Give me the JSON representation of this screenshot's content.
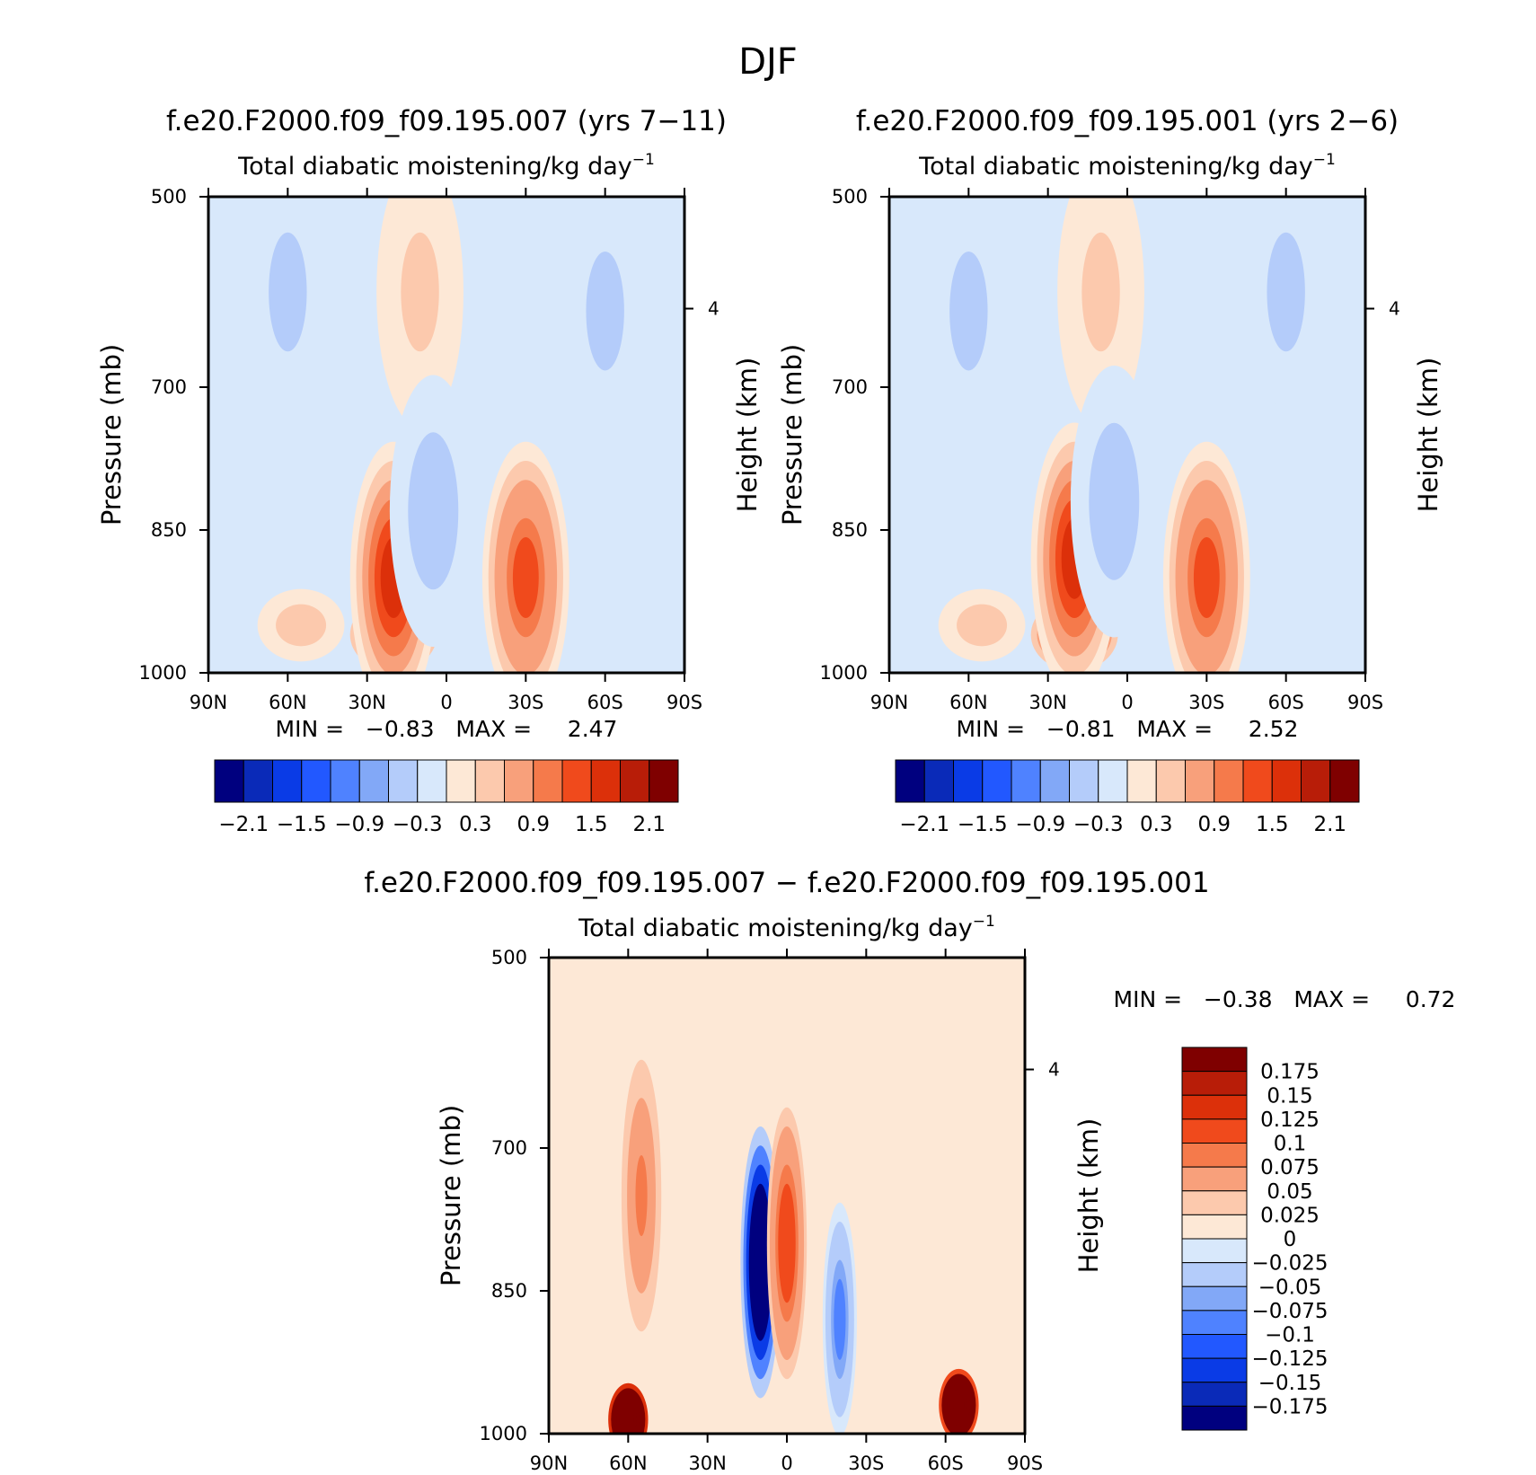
{
  "figure": {
    "title": "DJF"
  },
  "chart_data": [
    {
      "type": "heatmap",
      "id": "panel_007",
      "title": "f.e20.F2000.f09_f09.195.007 (yrs 7−11)",
      "subtitle": "Total diabatic moistening/kg day",
      "subtitle_exp": "−1",
      "ylabel": "Pressure (mb)",
      "ylabel_right": "Height (km)",
      "xticks": [
        "90N",
        "60N",
        "30N",
        "0",
        "30S",
        "60S",
        "90S"
      ],
      "xlim": [
        90,
        -90
      ],
      "yticks": [
        "500",
        "700",
        "850",
        "1000"
      ],
      "ylim": [
        1000,
        500
      ],
      "right_ticks": [
        "4"
      ],
      "minmax_text": "MIN =   −0.83   MAX =     2.47",
      "min": -0.83,
      "max": 2.47,
      "colorbar": {
        "orientation": "horizontal",
        "levels": [
          -2.4,
          -2.1,
          -1.8,
          -1.5,
          -1.2,
          -0.9,
          -0.6,
          -0.3,
          0,
          0.3,
          0.6,
          0.9,
          1.2,
          1.5,
          1.8,
          2.1
        ],
        "labels": [
          "−2.1",
          "−1.5",
          "−0.9",
          "−0.3",
          "0.3",
          "0.9",
          "1.5",
          "2.1"
        ],
        "colors": [
          "#00007f",
          "#0a2ab8",
          "#0a3be6",
          "#2258ff",
          "#4f82ff",
          "#82a8f7",
          "#b4ccfa",
          "#d8e8fb",
          "#fde8d6",
          "#fcc9ad",
          "#f8a07b",
          "#f57a4b",
          "#f04a1c",
          "#dc300a",
          "#b81d08",
          "#7f0000"
        ]
      },
      "features": [
        {
          "lat": 20,
          "p": 960,
          "value": 2.3
        },
        {
          "lat": 20,
          "p": 900,
          "value": 1.5
        },
        {
          "lat": -30,
          "p": 900,
          "value": 1.2
        },
        {
          "lat": 55,
          "p": 950,
          "value": 0.5
        },
        {
          "lat": 10,
          "p": 600,
          "value": 0.4
        },
        {
          "lat": 5,
          "p": 830,
          "value": -0.5
        },
        {
          "lat": 60,
          "p": 600,
          "value": -0.4
        },
        {
          "lat": -60,
          "p": 620,
          "value": -0.4
        }
      ]
    },
    {
      "type": "heatmap",
      "id": "panel_001",
      "title": "f.e20.F2000.f09_f09.195.001 (yrs 2−6)",
      "subtitle": "Total diabatic moistening/kg day",
      "subtitle_exp": "−1",
      "ylabel": "Pressure (mb)",
      "ylabel_right": "Height (km)",
      "xticks": [
        "90N",
        "60N",
        "30N",
        "0",
        "30S",
        "60S",
        "90S"
      ],
      "xlim": [
        90,
        -90
      ],
      "yticks": [
        "500",
        "700",
        "850",
        "1000"
      ],
      "ylim": [
        1000,
        500
      ],
      "right_ticks": [
        "4"
      ],
      "minmax_text": "MIN =   −0.81   MAX =     2.52",
      "min": -0.81,
      "max": 2.52,
      "colorbar": {
        "orientation": "horizontal",
        "levels": [
          -2.4,
          -2.1,
          -1.8,
          -1.5,
          -1.2,
          -0.9,
          -0.6,
          -0.3,
          0,
          0.3,
          0.6,
          0.9,
          1.2,
          1.5,
          1.8,
          2.1
        ],
        "labels": [
          "−2.1",
          "−1.5",
          "−0.9",
          "−0.3",
          "0.3",
          "0.9",
          "1.5",
          "2.1"
        ],
        "colors": [
          "#00007f",
          "#0a2ab8",
          "#0a3be6",
          "#2258ff",
          "#4f82ff",
          "#82a8f7",
          "#b4ccfa",
          "#d8e8fb",
          "#fde8d6",
          "#fcc9ad",
          "#f8a07b",
          "#f57a4b",
          "#f04a1c",
          "#dc300a",
          "#b81d08",
          "#7f0000"
        ]
      },
      "features": [
        {
          "lat": 20,
          "p": 960,
          "value": 2.4
        },
        {
          "lat": 20,
          "p": 880,
          "value": 1.6
        },
        {
          "lat": -30,
          "p": 900,
          "value": 1.3
        },
        {
          "lat": 55,
          "p": 950,
          "value": 0.5
        },
        {
          "lat": 10,
          "p": 600,
          "value": 0.4
        },
        {
          "lat": 5,
          "p": 820,
          "value": -0.5
        },
        {
          "lat": 60,
          "p": 620,
          "value": -0.4
        },
        {
          "lat": -60,
          "p": 600,
          "value": -0.4
        }
      ]
    },
    {
      "type": "heatmap",
      "id": "panel_diff",
      "title": "f.e20.F2000.f09_f09.195.007 − f.e20.F2000.f09_f09.195.001",
      "subtitle": "Total diabatic moistening/kg day",
      "subtitle_exp": "−1",
      "ylabel": "Pressure (mb)",
      "ylabel_right": "Height (km)",
      "xticks": [
        "90N",
        "60N",
        "30N",
        "0",
        "30S",
        "60S",
        "90S"
      ],
      "xlim": [
        90,
        -90
      ],
      "yticks": [
        "500",
        "700",
        "850",
        "1000"
      ],
      "ylim": [
        1000,
        500
      ],
      "right_ticks": [
        "4"
      ],
      "minmax_text": "MIN =   −0.38   MAX =     0.72",
      "min": -0.38,
      "max": 0.72,
      "colorbar": {
        "orientation": "vertical",
        "labels": [
          "0.175",
          "0.15",
          "0.125",
          "0.1",
          "0.075",
          "0.05",
          "0.025",
          "0",
          "−0.025",
          "−0.05",
          "−0.075",
          "−0.1",
          "−0.125",
          "−0.15",
          "−0.175"
        ],
        "colors": [
          "#7f0000",
          "#b81d08",
          "#dc300a",
          "#f04a1c",
          "#f57a4b",
          "#f8a07b",
          "#fcc9ad",
          "#fde8d6",
          "#d8e8fb",
          "#b4ccfa",
          "#82a8f7",
          "#4f82ff",
          "#2258ff",
          "#0a3be6",
          "#0a2ab8",
          "#00007f"
        ]
      },
      "features": [
        {
          "lat": 10,
          "p": 820,
          "value": -0.35
        },
        {
          "lat": 60,
          "p": 985,
          "value": 0.7
        },
        {
          "lat": -65,
          "p": 970,
          "value": 0.6
        },
        {
          "lat": 0,
          "p": 800,
          "value": 0.1
        },
        {
          "lat": -20,
          "p": 880,
          "value": -0.1
        },
        {
          "lat": 55,
          "p": 750,
          "value": 0.06
        }
      ]
    }
  ]
}
